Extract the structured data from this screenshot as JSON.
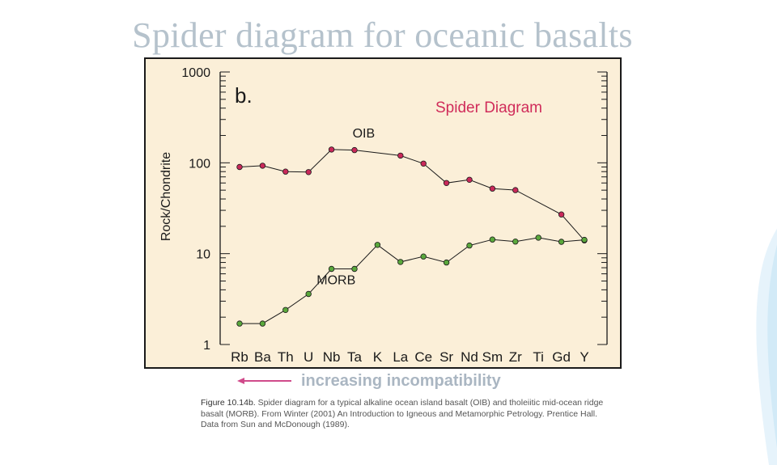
{
  "slide": {
    "title": "Spider diagram for oceanic basalts"
  },
  "arrow": {
    "label": "increasing incompatibility",
    "color": "#d04a8a"
  },
  "caption": {
    "figure_ref": "Figure 10.14b.",
    "text": " Spider diagram for a typical alkaline ocean island basalt (OIB) and tholeiitic mid-ocean ridge basalt (MORB). From Winter (2001) An Introduction to Igneous and Metamorphic Petrology. Prentice Hall. Data from Sun and McDonough (1989)."
  },
  "chart_data": {
    "type": "line",
    "panel_label": "b.",
    "title": "Spider Diagram",
    "title_color": "#d02c5a",
    "ylabel": "Rock/Chondrite",
    "xlabel": "",
    "yscale": "log",
    "ylim": [
      1,
      1000
    ],
    "yticks": [
      1,
      10,
      100,
      1000
    ],
    "ytick_labels": [
      "1",
      "10",
      "100",
      "1000"
    ],
    "categories": [
      "Rb",
      "Ba",
      "Th",
      "U",
      "Nb",
      "Ta",
      "K",
      "La",
      "Ce",
      "Sr",
      "Nd",
      "Sm",
      "Zr",
      "Ti",
      "Gd",
      "Y"
    ],
    "category_positions": [
      1,
      2,
      3,
      4,
      5,
      6,
      7,
      8,
      9,
      10,
      11,
      12,
      13,
      14,
      15,
      16
    ],
    "series": [
      {
        "name": "OIB",
        "color": "#c9295a",
        "x": [
          1,
          2,
          3,
          4,
          5,
          6,
          8,
          9,
          10,
          11,
          12,
          13,
          15,
          16
        ],
        "values": [
          90,
          93,
          80,
          79,
          140,
          138,
          120,
          98,
          60,
          65,
          52,
          50,
          27,
          14
        ]
      },
      {
        "name": "MORB",
        "color": "#5aa83c",
        "x": [
          1,
          2,
          3,
          4,
          5,
          6,
          7,
          8,
          9,
          10,
          11,
          12,
          13,
          14,
          15,
          16
        ],
        "values": [
          1.7,
          1.7,
          2.4,
          3.6,
          6.8,
          6.8,
          12.5,
          8.1,
          9.3,
          8.0,
          12.3,
          14.3,
          13.6,
          15.0,
          13.5,
          14.2
        ]
      }
    ],
    "background": "#fbefd8",
    "grid": false
  }
}
